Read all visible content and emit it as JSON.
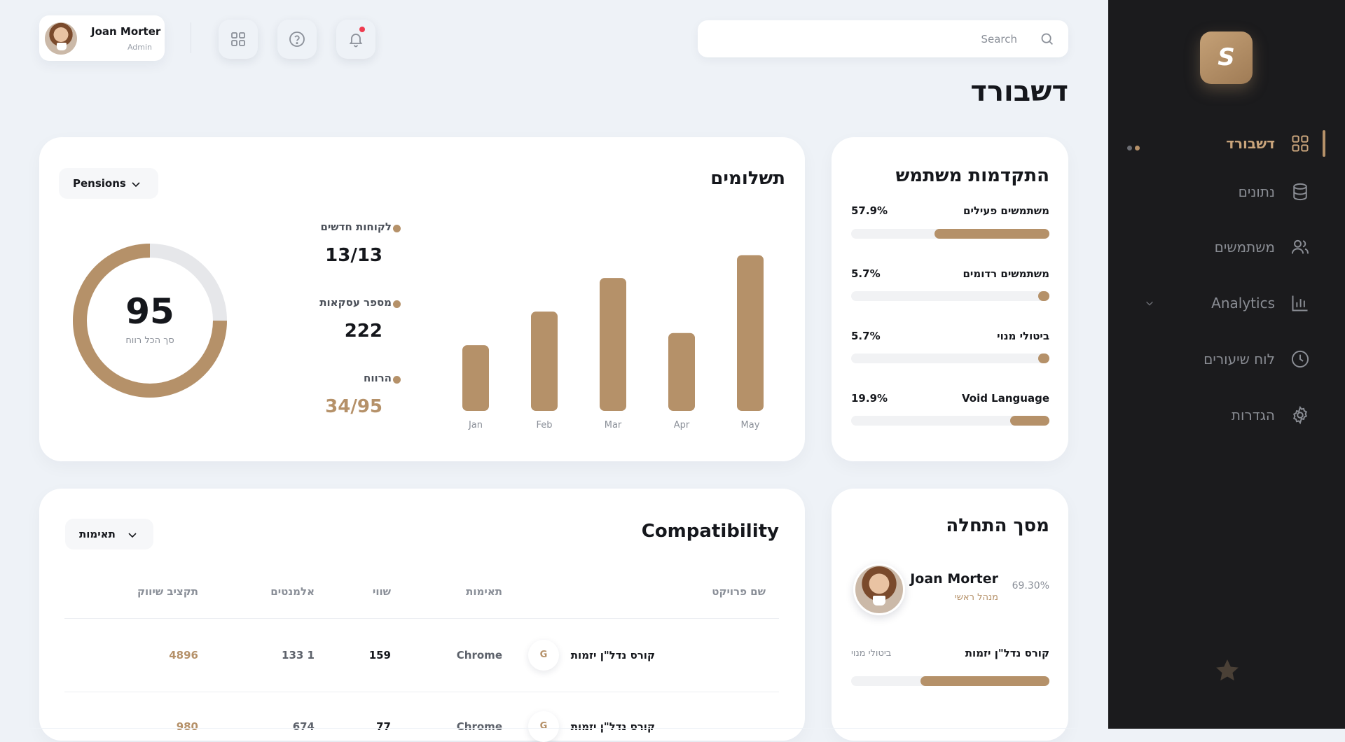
{
  "topbar": {
    "user_name": "Joan Morter",
    "user_role": "Admin",
    "search_placeholder": "Search",
    "icons": [
      "grid-icon",
      "help-circle-icon",
      "bell-icon"
    ]
  },
  "page": {
    "title": "דשבורד"
  },
  "user_progress": {
    "title": "התקדמות משתמש",
    "rows": [
      {
        "label": "משתמשים פעילים",
        "value": "57.9%",
        "fill": 0.579
      },
      {
        "label": "משתמשים רדומים",
        "value": "5.7%",
        "fill": 0.057
      },
      {
        "label": "ביטולי מנוי",
        "value": "5.7%",
        "fill": 0.057
      },
      {
        "label": "Void Language",
        "value": "19.9%",
        "fill": 0.199
      }
    ]
  },
  "payments": {
    "title": "תשלומים",
    "dropdown": "Pensions",
    "donut": {
      "value": "95",
      "caption": "סך הכל רווח",
      "fraction": 0.75
    },
    "stats": [
      {
        "label": "לקוחות חדשים",
        "value": "13/13"
      },
      {
        "label": "מספר עסקאות",
        "value": "222"
      },
      {
        "label": "הרווח",
        "value": "34/95"
      }
    ]
  },
  "chart_data": {
    "type": "bar",
    "categories": [
      "Jan",
      "Feb",
      "Mar",
      "Apr",
      "May"
    ],
    "values": [
      43,
      65,
      87,
      51,
      102
    ],
    "ylim": [
      0,
      110
    ],
    "grid": false,
    "bar_color": "#b59169"
  },
  "compatibility": {
    "title": "Compatibility",
    "dropdown": "תאימות",
    "columns": [
      "שם פרויקט",
      "תאימות",
      "שווי",
      "אלמנטים",
      "תקציב שיווק"
    ],
    "rows": [
      {
        "project": "קורס נדל\"ן יזמות",
        "badge": "G",
        "compat": "Chrome",
        "worth": "159",
        "elements": "133 1",
        "budget": "4896"
      },
      {
        "project": "קורס נדל\"ן יזמות",
        "badge": "G",
        "compat": "Chrome",
        "worth": "77",
        "elements": "674",
        "budget": "980"
      }
    ]
  },
  "start_screen": {
    "title": "מסך התחלה",
    "name": "Joan Morter",
    "role": "מנהל ראשי",
    "percent": "69.30%",
    "course_label": "קורס נדל\"ן יזמות",
    "course_sub": "ביטולי מנוי",
    "course_fill": 0.65
  },
  "sidebar": {
    "logo": "S",
    "items": [
      {
        "label": "דשבורד",
        "icon": "grid-icon",
        "active": true
      },
      {
        "label": "נתונים",
        "icon": "database-icon",
        "active": false
      },
      {
        "label": "משתמשים",
        "icon": "users-icon",
        "active": false
      },
      {
        "label": "Analytics",
        "icon": "bar-chart-icon",
        "active": false
      },
      {
        "label": "לוח שיעורים",
        "icon": "clock-icon",
        "active": false
      },
      {
        "label": "הגדרות",
        "icon": "gear-icon",
        "active": false
      }
    ]
  },
  "colors": {
    "accent": "#b59169",
    "sidebar_bg": "#1b1b1d",
    "page_bg": "#eef2f7",
    "notification": "#ef3b4f"
  }
}
